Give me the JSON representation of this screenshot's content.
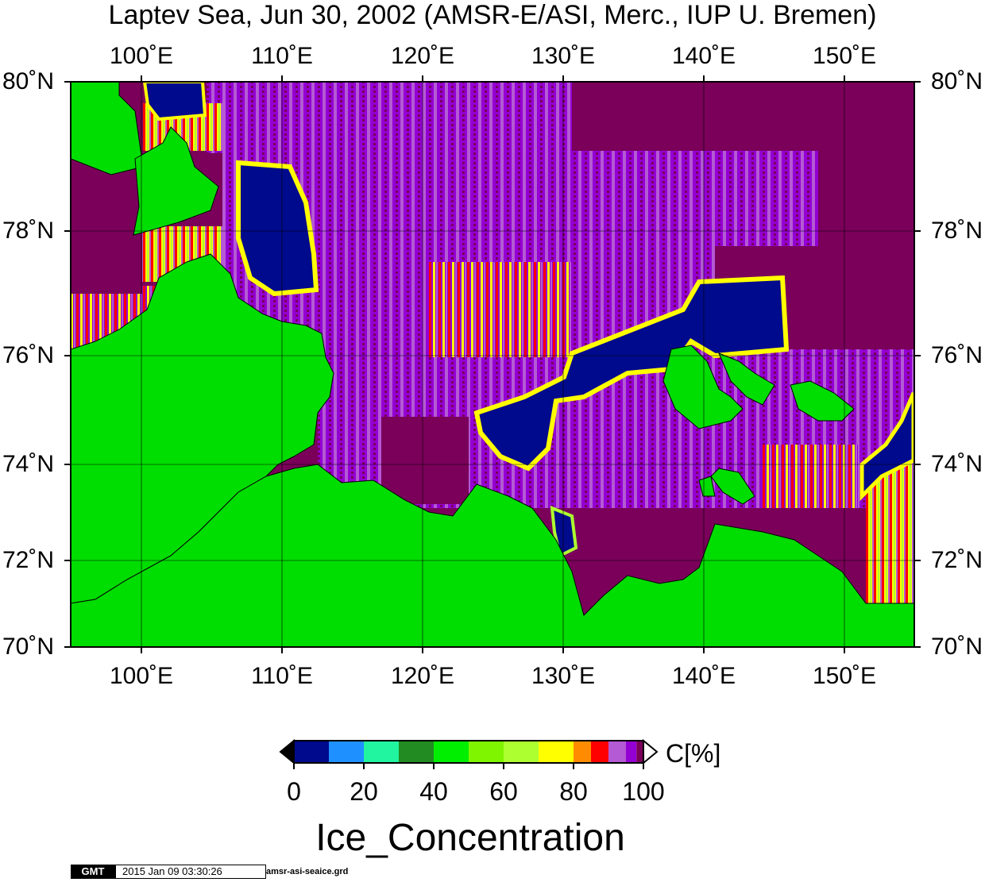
{
  "title": "Laptev Sea, Jun 30, 2002 (AMSR-E/ASI, Merc., IUP U. Bremen)",
  "lon_ticks": [
    "100˚E",
    "110˚E",
    "120˚E",
    "130˚E",
    "140˚E",
    "150˚E"
  ],
  "lat_ticks": [
    "80˚N",
    "78˚N",
    "76˚N",
    "74˚N",
    "72˚N",
    "70˚N"
  ],
  "colorbar": {
    "unit": "C[%]",
    "labels": [
      "0",
      "20",
      "40",
      "60",
      "80",
      "100"
    ],
    "bins": [
      {
        "from": 0,
        "to": 10,
        "color": "#000a8c"
      },
      {
        "from": 10,
        "to": 20,
        "color": "#1e90ff"
      },
      {
        "from": 20,
        "to": 30,
        "color": "#22f5a0"
      },
      {
        "from": 30,
        "to": 40,
        "color": "#228b22"
      },
      {
        "from": 40,
        "to": 50,
        "color": "#00ee00"
      },
      {
        "from": 50,
        "to": 60,
        "color": "#7ff500"
      },
      {
        "from": 60,
        "to": 70,
        "color": "#adff2f"
      },
      {
        "from": 70,
        "to": 80,
        "color": "#ffff00"
      },
      {
        "from": 80,
        "to": 85,
        "color": "#ff8c00"
      },
      {
        "from": 85,
        "to": 90,
        "color": "#ff0000"
      },
      {
        "from": 90,
        "to": 95,
        "color": "#b45ad4"
      },
      {
        "from": 95,
        "to": 98,
        "color": "#9400d3"
      },
      {
        "from": 98,
        "to": 100,
        "color": "#7a005a"
      }
    ]
  },
  "variable": "Ice_Concentration",
  "footer": {
    "logo": "GMT",
    "timestamp": "2015 Jan 09 03:30:26",
    "filename": "amsr-asi-seaice.grd"
  },
  "colors": {
    "land": "#00dd00",
    "high_ice": "#7a005a",
    "open_water": "#000a8c",
    "mixed_ice": "#9400d3",
    "light_ice": "#b45ad4"
  }
}
